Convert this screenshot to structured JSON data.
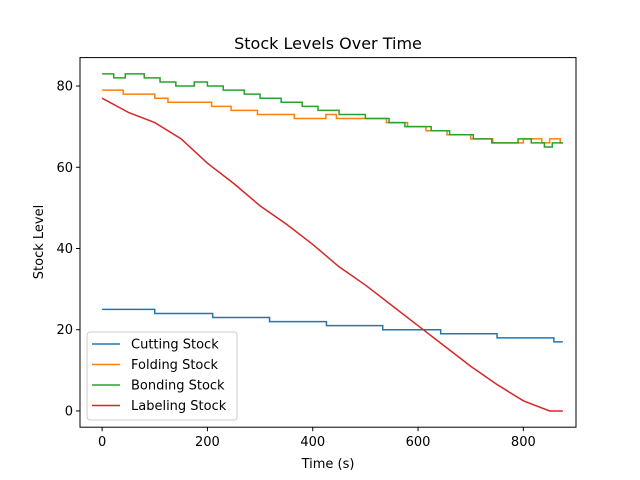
{
  "chart_data": {
    "type": "line",
    "title": "Stock Levels Over Time",
    "xlabel": "Time (s)",
    "ylabel": "Stock Level",
    "xlim": [
      -42,
      900
    ],
    "ylim": [
      -4,
      87
    ],
    "xticks": [
      0,
      200,
      400,
      600,
      800
    ],
    "yticks": [
      0,
      20,
      40,
      60,
      80
    ],
    "legend_position": "lower-left",
    "series": [
      {
        "name": "Cutting Stock",
        "color": "#1f77b4",
        "x": [
          0,
          100,
          100,
          210,
          210,
          318,
          318,
          426,
          426,
          533,
          533,
          643,
          643,
          750,
          750,
          858,
          858,
          875
        ],
        "y": [
          25,
          25,
          24,
          24,
          23,
          23,
          22,
          22,
          21,
          21,
          20,
          20,
          19,
          19,
          18,
          18,
          17,
          17
        ]
      },
      {
        "name": "Folding Stock",
        "color": "#ff7f0e",
        "x": [
          0,
          40,
          40,
          100,
          100,
          125,
          125,
          208,
          208,
          245,
          245,
          295,
          295,
          365,
          365,
          425,
          425,
          445,
          445,
          540,
          540,
          580,
          580,
          615,
          615,
          655,
          655,
          700,
          700,
          742,
          742,
          800,
          800,
          835,
          835,
          850,
          850,
          870,
          870,
          875
        ],
        "y": [
          79,
          79,
          78,
          78,
          77,
          77,
          76,
          76,
          75,
          75,
          74,
          74,
          73,
          73,
          72,
          72,
          73,
          73,
          72,
          72,
          71,
          71,
          70,
          70,
          69,
          69,
          68,
          68,
          67,
          67,
          66,
          66,
          67,
          67,
          66,
          66,
          67,
          67,
          66,
          66
        ]
      },
      {
        "name": "Bonding Stock",
        "color": "#2ca02c",
        "x": [
          0,
          22,
          22,
          44,
          44,
          80,
          80,
          110,
          110,
          140,
          140,
          175,
          175,
          200,
          200,
          230,
          230,
          270,
          270,
          300,
          300,
          340,
          340,
          380,
          380,
          410,
          410,
          450,
          450,
          500,
          500,
          545,
          545,
          575,
          575,
          625,
          625,
          660,
          660,
          705,
          705,
          740,
          740,
          790,
          790,
          815,
          815,
          840,
          840,
          855,
          855,
          875
        ],
        "y": [
          83,
          83,
          82,
          82,
          83,
          83,
          82,
          82,
          81,
          81,
          80,
          80,
          81,
          81,
          80,
          80,
          79,
          79,
          78,
          78,
          77,
          77,
          76,
          76,
          75,
          75,
          74,
          74,
          73,
          73,
          72,
          72,
          71,
          71,
          70,
          70,
          69,
          69,
          68,
          68,
          67,
          67,
          66,
          66,
          67,
          67,
          66,
          66,
          65,
          65,
          66,
          66
        ]
      },
      {
        "name": "Labeling Stock",
        "color": "#d62728",
        "x": [
          0,
          50,
          100,
          150,
          200,
          250,
          300,
          350,
          400,
          450,
          500,
          550,
          600,
          650,
          700,
          750,
          800,
          850,
          875
        ],
        "y": [
          77,
          73.5,
          71,
          67,
          61,
          56,
          50.5,
          46,
          41,
          35.5,
          31,
          26,
          21,
          16,
          11,
          6.5,
          2.5,
          0,
          0
        ]
      }
    ]
  }
}
